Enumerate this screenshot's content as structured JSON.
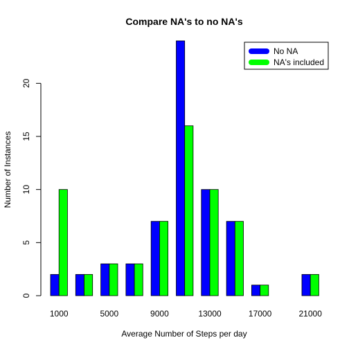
{
  "chart_data": {
    "type": "bar",
    "title": "Compare NA's to no NA's",
    "xlabel": "Average Number of Steps per day",
    "ylabel": "Number of Instances",
    "categories": [
      "1000",
      "3000",
      "5000",
      "7000",
      "9000",
      "11000",
      "13000",
      "15000",
      "17000",
      "19000",
      "21000"
    ],
    "x_tick_labels_shown": [
      "1000",
      "5000",
      "9000",
      "13000",
      "17000",
      "21000"
    ],
    "y_ticks": [
      0,
      5,
      10,
      15,
      20
    ],
    "ylim": [
      0,
      24
    ],
    "grid": false,
    "legend_position": "top-right",
    "series": [
      {
        "name": "No NA",
        "color": "#0000ff",
        "values": [
          2,
          2,
          3,
          3,
          7,
          24,
          10,
          7,
          1,
          0,
          2
        ]
      },
      {
        "name": "NA's included",
        "color": "#00ff00",
        "values": [
          10,
          2,
          3,
          3,
          7,
          16,
          10,
          7,
          1,
          0,
          2
        ]
      }
    ]
  }
}
